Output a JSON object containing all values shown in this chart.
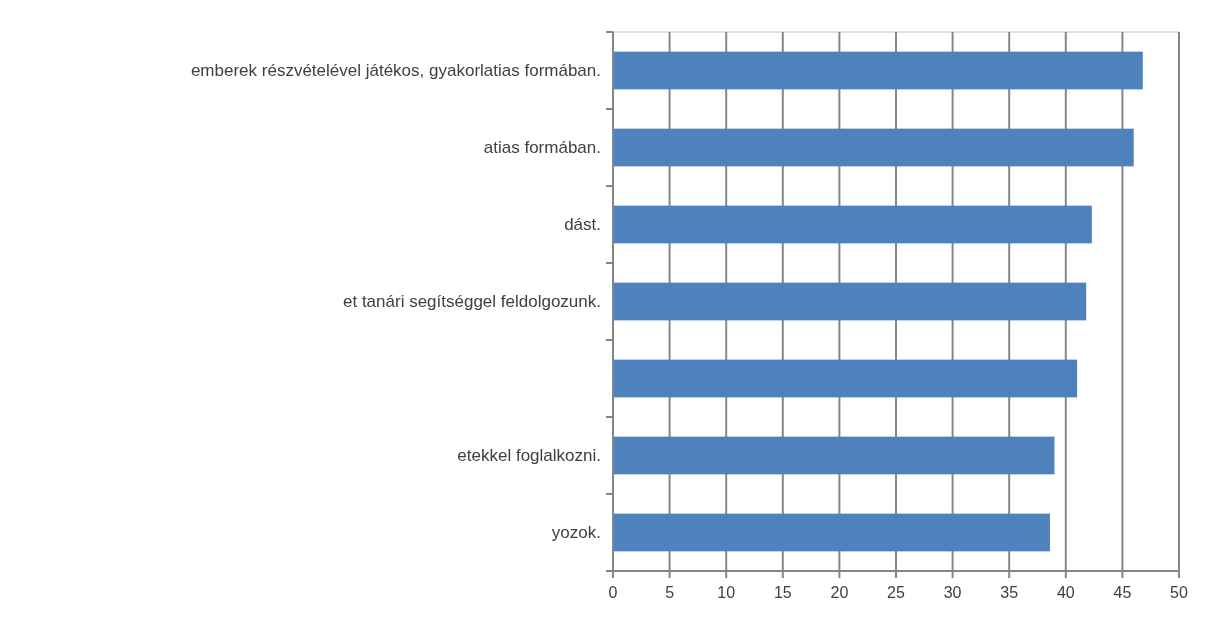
{
  "chart_data": {
    "type": "bar",
    "orientation": "horizontal",
    "categories": [
      "emberek részvételével játékos, gyakorlatias formában.",
      "atias formában.",
      "dást.",
      "et tanári segítséggel feldolgozunk.",
      null,
      "etekkel foglalkozni.",
      "yozok."
    ],
    "values": [
      46.8,
      46.0,
      42.3,
      41.8,
      41.0,
      39.0,
      38.6
    ],
    "color": "#4f81bd",
    "xlim": [
      0,
      50
    ],
    "xticks": [
      0,
      5,
      10,
      15,
      20,
      25,
      30,
      35,
      40,
      45,
      50
    ],
    "grid": "x"
  }
}
